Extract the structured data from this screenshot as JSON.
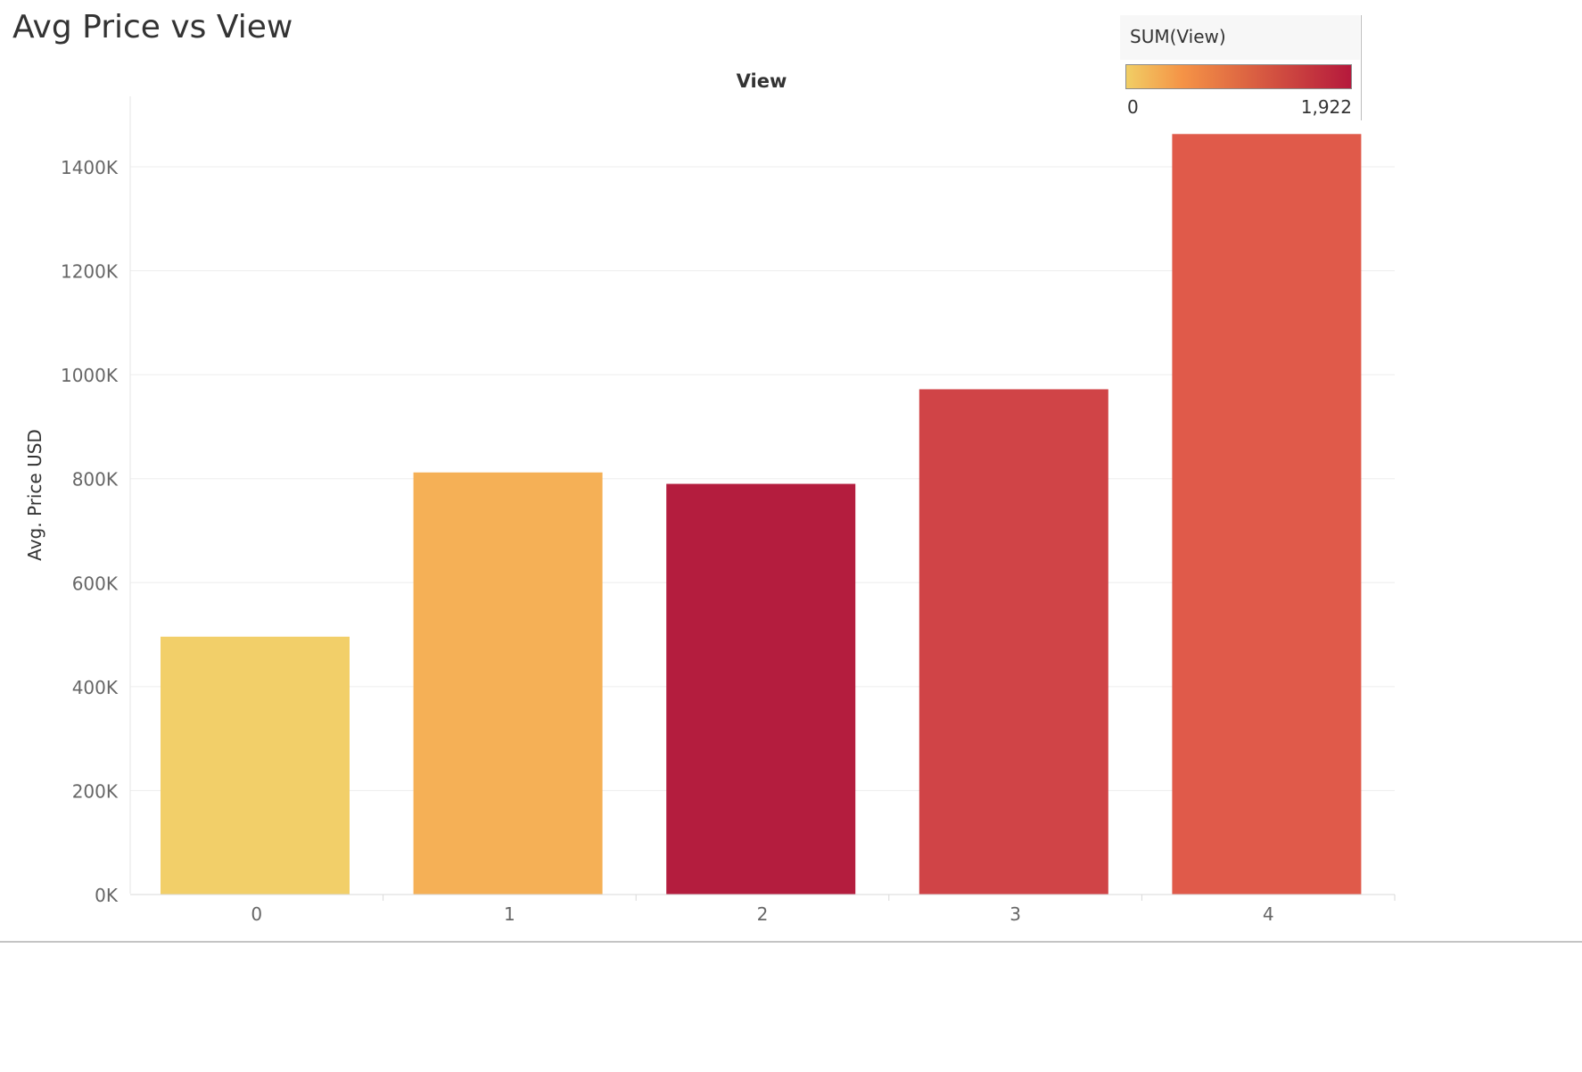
{
  "page": {
    "title": "Avg Price vs View"
  },
  "legend": {
    "title": "SUM(View)",
    "min_label": "0",
    "max_label": "1,922",
    "min_color": "#f1ce65",
    "mid_color": "#f59346",
    "max_color": "#b5193c"
  },
  "chart_data": {
    "type": "bar",
    "title": "Avg Price vs View",
    "xlabel": "View",
    "ylabel": "Avg. Price USD",
    "categories": [
      "0",
      "1",
      "2",
      "3",
      "4"
    ],
    "values": [
      496000,
      812000,
      790000,
      972000,
      1463000
    ],
    "color_measure": "SUM(View)",
    "color_values": [
      0,
      332,
      1922,
      1314,
      1256
    ],
    "bar_colors": [
      "#f2cf69",
      "#f5b056",
      "#b41d3e",
      "#d04447",
      "#e05a4a"
    ],
    "ylim": [
      0,
      1500000
    ],
    "yticks": [
      0,
      200000,
      400000,
      600000,
      800000,
      1000000,
      1200000,
      1400000
    ],
    "ytick_labels": [
      "0K",
      "200K",
      "400K",
      "600K",
      "800K",
      "1000K",
      "1200K",
      "1400K"
    ],
    "grid": true,
    "legend_position": "top-right"
  }
}
